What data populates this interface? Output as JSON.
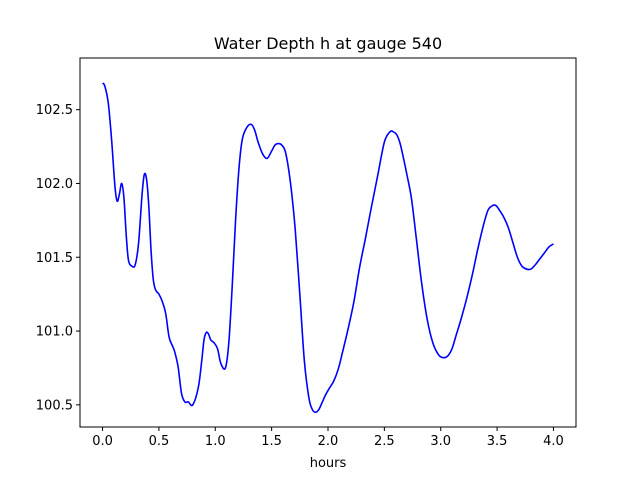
{
  "chart_data": {
    "type": "line",
    "title": "Water Depth h at gauge 540",
    "xlabel": "hours",
    "ylabel": "",
    "xlim": [
      -0.2,
      4.2
    ],
    "ylim": [
      100.35,
      102.85
    ],
    "xticks": [
      0.0,
      0.5,
      1.0,
      1.5,
      2.0,
      2.5,
      3.0,
      3.5,
      4.0
    ],
    "xtick_labels": [
      "0.0",
      "0.5",
      "1.0",
      "1.5",
      "2.0",
      "2.5",
      "3.0",
      "3.5",
      "4.0"
    ],
    "yticks": [
      100.5,
      101.0,
      101.5,
      102.0,
      102.5
    ],
    "ytick_labels": [
      "100.5",
      "101.0",
      "101.5",
      "102.0",
      "102.5"
    ],
    "grid": false,
    "series": [
      {
        "color": "#0000ff",
        "x": [
          0.0,
          0.02,
          0.05,
          0.08,
          0.11,
          0.13,
          0.15,
          0.17,
          0.19,
          0.21,
          0.23,
          0.26,
          0.29,
          0.32,
          0.35,
          0.37,
          0.39,
          0.41,
          0.43,
          0.45,
          0.47,
          0.5,
          0.53,
          0.56,
          0.59,
          0.62,
          0.64,
          0.67,
          0.7,
          0.73,
          0.76,
          0.8,
          0.85,
          0.88,
          0.9,
          0.92,
          0.94,
          0.96,
          0.99,
          1.02,
          1.05,
          1.09,
          1.12,
          1.15,
          1.18,
          1.21,
          1.24,
          1.28,
          1.32,
          1.35,
          1.38,
          1.42,
          1.46,
          1.5,
          1.53,
          1.56,
          1.59,
          1.62,
          1.65,
          1.68,
          1.71,
          1.75,
          1.79,
          1.83,
          1.86,
          1.89,
          1.92,
          1.95,
          1.98,
          2.01,
          2.05,
          2.09,
          2.13,
          2.18,
          2.23,
          2.28,
          2.33,
          2.38,
          2.44,
          2.5,
          2.55,
          2.58,
          2.61,
          2.64,
          2.67,
          2.7,
          2.74,
          2.78,
          2.83,
          2.88,
          2.93,
          2.98,
          3.02,
          3.06,
          3.1,
          3.14,
          3.18,
          3.23,
          3.28,
          3.33,
          3.38,
          3.42,
          3.46,
          3.49,
          3.52,
          3.56,
          3.6,
          3.64,
          3.68,
          3.72,
          3.76,
          3.8,
          3.84,
          3.88,
          3.92,
          3.96,
          4.0
        ],
        "y": [
          102.68,
          102.66,
          102.55,
          102.3,
          101.98,
          101.88,
          101.93,
          102.0,
          101.9,
          101.65,
          101.48,
          101.44,
          101.45,
          101.6,
          101.92,
          102.06,
          102.03,
          101.85,
          101.55,
          101.35,
          101.28,
          101.25,
          101.2,
          101.12,
          100.96,
          100.9,
          100.86,
          100.76,
          100.58,
          100.52,
          100.52,
          100.5,
          100.62,
          100.8,
          100.94,
          100.99,
          100.98,
          100.94,
          100.92,
          100.88,
          100.78,
          100.75,
          100.92,
          101.3,
          101.75,
          102.1,
          102.3,
          102.38,
          102.4,
          102.36,
          102.28,
          102.2,
          102.17,
          102.22,
          102.26,
          102.27,
          102.26,
          102.22,
          102.1,
          101.92,
          101.68,
          101.25,
          100.8,
          100.55,
          100.47,
          100.45,
          100.47,
          100.52,
          100.57,
          100.61,
          100.66,
          100.74,
          100.86,
          101.02,
          101.2,
          101.43,
          101.62,
          101.82,
          102.05,
          102.28,
          102.35,
          102.35,
          102.33,
          102.27,
          102.17,
          102.06,
          101.9,
          101.65,
          101.33,
          101.08,
          100.92,
          100.84,
          100.82,
          100.83,
          100.88,
          100.98,
          101.08,
          101.22,
          101.38,
          101.56,
          101.72,
          101.82,
          101.85,
          101.85,
          101.82,
          101.77,
          101.7,
          101.6,
          101.5,
          101.44,
          101.42,
          101.42,
          101.45,
          101.49,
          101.53,
          101.57,
          101.59
        ]
      }
    ]
  }
}
